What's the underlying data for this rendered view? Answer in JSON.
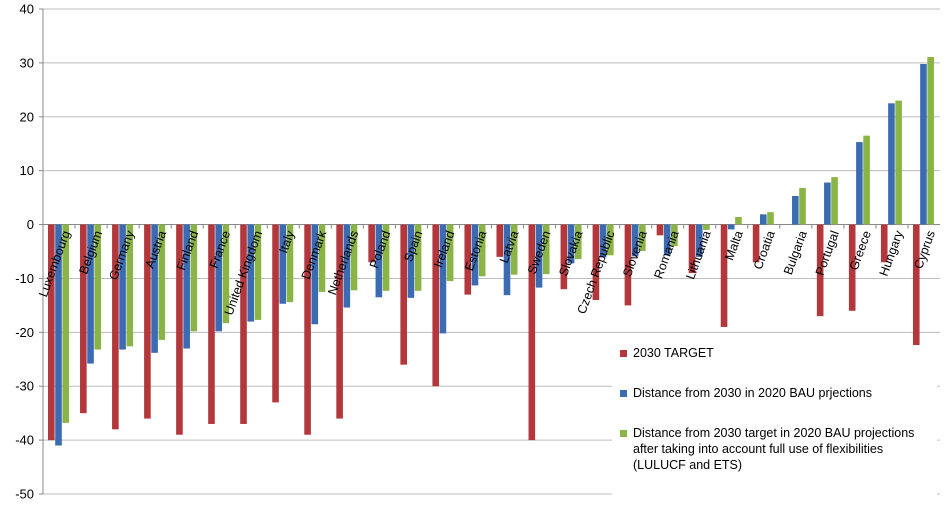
{
  "chart_data": {
    "type": "bar",
    "title": "",
    "xlabel": "",
    "ylabel": "",
    "ylim": [
      -50,
      40
    ],
    "yticks": [
      40,
      30,
      20,
      10,
      0,
      -10,
      -20,
      -30,
      -40,
      -50
    ],
    "grid": true,
    "legend_position": "bottom-right",
    "categories": [
      "Luxembourg",
      "Belgium",
      "Germany",
      "Austria",
      "Finland",
      "France",
      "United Kingdom",
      "Italy",
      "Denmark",
      "Netherlands",
      "Poland",
      "Spain",
      "Ireland",
      "Estonia",
      "Latvia",
      "Sweden",
      "Slovakia",
      "Czech Republic",
      "Slovenia",
      "Romania",
      "Lithuania",
      "Malta",
      "Croatia",
      "Bulgaria",
      "Portugal",
      "Greece",
      "Hungary",
      "Cyprus"
    ],
    "series": [
      {
        "name": "2030 TARGET",
        "color": "#B3373B",
        "values": [
          -40,
          -35,
          -38,
          -36,
          -39,
          -37,
          -37,
          -33,
          -39,
          -36,
          -7,
          -26,
          -30,
          -13,
          -6,
          -40,
          -12,
          -14,
          -15,
          -2,
          -9,
          -19,
          -7,
          0,
          -17,
          -16,
          -7,
          -24
        ]
      },
      {
        "name": "Distance from 2030 in 2020 BAU prjections",
        "color": "#3B6BB3",
        "values": [
          -41,
          -25.8,
          -23.2,
          -23.8,
          -23,
          -19.8,
          -18,
          -14.7,
          -18.5,
          -15.4,
          -13.5,
          -13.6,
          -20.2,
          -11.3,
          -13.1,
          -11.7,
          -7.2,
          -6.1,
          -5.9,
          -5.7,
          -6,
          -0.9,
          1.9,
          5.3,
          7.8,
          15.3,
          22.5,
          29.8
        ]
      },
      {
        "name": "Distance from 2030 target in 2020 BAU projections after taking into account full use of flexibilities (LULUCF and ETS)",
        "color": "#8BB446",
        "values": [
          -36.8,
          -23.2,
          -22.6,
          -21.4,
          -19.8,
          -18.3,
          -17.7,
          -14.4,
          -12.5,
          -12.2,
          -12.3,
          -12.3,
          -10.5,
          -9.6,
          -9.3,
          -9.2,
          -6.4,
          -5.7,
          -4.9,
          -4,
          -1,
          1.4,
          2.3,
          6.8,
          8.8,
          16.5,
          23,
          31.1
        ]
      }
    ]
  }
}
